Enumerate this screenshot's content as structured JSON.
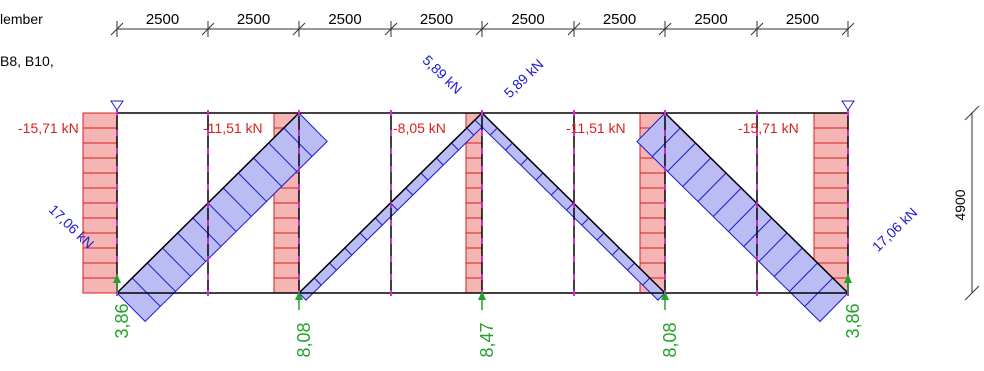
{
  "header": {
    "title_fragment": "lember",
    "members_fragment": "B8, B10,"
  },
  "dimensions": {
    "bays": [
      "2500",
      "2500",
      "2500",
      "2500",
      "2500",
      "2500",
      "2500",
      "2500"
    ],
    "height": "4900"
  },
  "forces": {
    "vertical_left": "-15,71 kN",
    "vertical_2": "-11,51 kN",
    "vertical_3": "-8,05 kN",
    "vertical_4": "-11,51 kN",
    "vertical_5": "-15,71 kN",
    "diag_left_end": "17,06 kN",
    "diag_top_left": "5,89 kN",
    "diag_top_right": "5,89 kN",
    "diag_right_end": "17,06 kN"
  },
  "reactions": [
    "3,86",
    "8,08",
    "8,47",
    "8,08",
    "3,86"
  ],
  "colors": {
    "compression": "#d92020",
    "compression_fill": "#f5b5b5",
    "tension": "#1a1ad0",
    "tension_fill": "#bcbcf5",
    "reaction": "#22a22a",
    "joint": "#e020e0",
    "support": "#2020c0"
  },
  "icons": {
    "support": "triangle-support-icon",
    "reaction": "arrow-up-icon"
  }
}
